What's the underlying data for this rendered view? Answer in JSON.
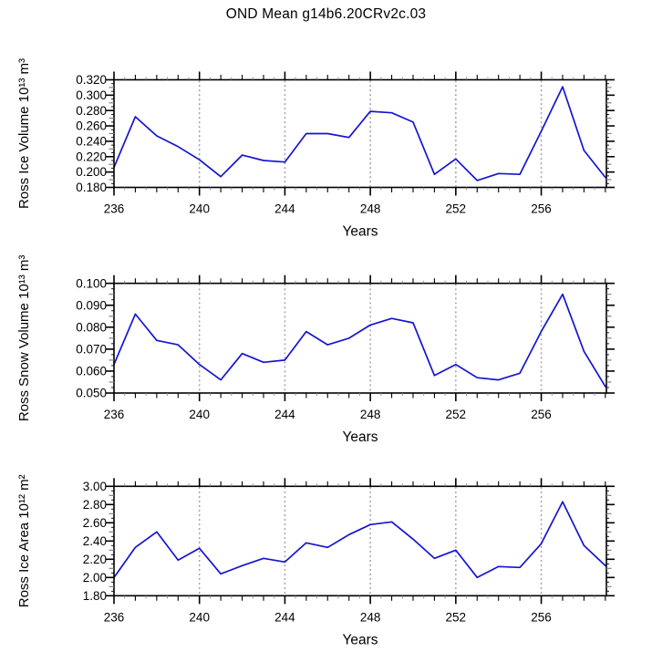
{
  "title": "OND Mean g14b6.20CRv2c.03",
  "colors": {
    "line": "#1515d0",
    "grid": "#9a9a9a",
    "axis": "#000000",
    "text": "#000000",
    "background": "#ffffff"
  },
  "chart_data": [
    {
      "type": "line",
      "name": "ross-ice-volume",
      "ylabel": "Ross Ice Volume 10¹³ m³",
      "xlabel": "Years",
      "x": [
        236,
        237,
        238,
        239,
        240,
        241,
        242,
        243,
        244,
        245,
        246,
        247,
        248,
        249,
        250,
        251,
        252,
        253,
        254,
        255,
        256,
        257,
        258,
        259
      ],
      "values": [
        0.206,
        0.272,
        0.247,
        0.233,
        0.216,
        0.194,
        0.222,
        0.215,
        0.213,
        0.25,
        0.25,
        0.245,
        0.279,
        0.277,
        0.265,
        0.197,
        0.217,
        0.189,
        0.198,
        0.197,
        0.253,
        0.311,
        0.228,
        0.193
      ],
      "ylim": [
        0.18,
        0.32
      ],
      "xlim": [
        236,
        259.05
      ],
      "ytick_labels": [
        "0.180",
        "0.200",
        "0.220",
        "0.240",
        "0.260",
        "0.280",
        "0.300",
        "0.320"
      ],
      "xtick_labels": [
        "236",
        "240",
        "244",
        "248",
        "252",
        "256"
      ],
      "grid_x": [
        240,
        244,
        248,
        252,
        256
      ],
      "y_major": 0.02,
      "y_half": 0.01,
      "y_quarter": 0.005,
      "x_major": 4,
      "x_minor": 1,
      "x_sub": 0.5,
      "grid": "vertical-dashed",
      "legend": "none"
    },
    {
      "type": "line",
      "name": "ross-snow-volume",
      "ylabel": "Ross Snow Volume 10¹³ m³",
      "xlabel": "Years",
      "x": [
        236,
        237,
        238,
        239,
        240,
        241,
        242,
        243,
        244,
        245,
        246,
        247,
        248,
        249,
        250,
        251,
        252,
        253,
        254,
        255,
        256,
        257,
        258,
        259
      ],
      "values": [
        0.063,
        0.086,
        0.074,
        0.072,
        0.063,
        0.056,
        0.068,
        0.064,
        0.065,
        0.078,
        0.072,
        0.075,
        0.081,
        0.084,
        0.082,
        0.058,
        0.063,
        0.057,
        0.056,
        0.059,
        0.078,
        0.095,
        0.069,
        0.053
      ],
      "ylim": [
        0.05,
        0.1
      ],
      "xlim": [
        236,
        259.05
      ],
      "ytick_labels": [
        "0.050",
        "0.060",
        "0.070",
        "0.080",
        "0.090",
        "0.100"
      ],
      "xtick_labels": [
        "236",
        "240",
        "244",
        "248",
        "252",
        "256"
      ],
      "grid_x": [
        240,
        244,
        248,
        252,
        256
      ],
      "y_major": 0.01,
      "y_half": 0.005,
      "y_quarter": 0.0025,
      "x_major": 4,
      "x_minor": 1,
      "x_sub": 0.5,
      "grid": "vertical-dashed",
      "legend": "none"
    },
    {
      "type": "line",
      "name": "ross-ice-area",
      "ylabel": "Ross Ice Area 10¹² m²",
      "xlabel": "Years",
      "x": [
        236,
        237,
        238,
        239,
        240,
        241,
        242,
        243,
        244,
        245,
        246,
        247,
        248,
        249,
        250,
        251,
        252,
        253,
        254,
        255,
        256,
        257,
        258,
        259
      ],
      "values": [
        2.0,
        2.33,
        2.5,
        2.19,
        2.32,
        2.04,
        2.13,
        2.21,
        2.17,
        2.38,
        2.33,
        2.47,
        2.58,
        2.61,
        2.42,
        2.21,
        2.3,
        2.0,
        2.12,
        2.11,
        2.37,
        2.83,
        2.35,
        2.13
      ],
      "ylim": [
        1.8,
        3.0
      ],
      "xlim": [
        236,
        259.05
      ],
      "ytick_labels": [
        "1.80",
        "2.00",
        "2.20",
        "2.40",
        "2.60",
        "2.80",
        "3.00"
      ],
      "xtick_labels": [
        "236",
        "240",
        "244",
        "248",
        "252",
        "256"
      ],
      "grid_x": [
        240,
        244,
        248,
        252,
        256
      ],
      "y_major": 0.2,
      "y_half": 0.1,
      "y_quarter": 0.05,
      "x_major": 4,
      "x_minor": 1,
      "x_sub": 0.5,
      "grid": "vertical-dashed",
      "legend": "none"
    }
  ]
}
